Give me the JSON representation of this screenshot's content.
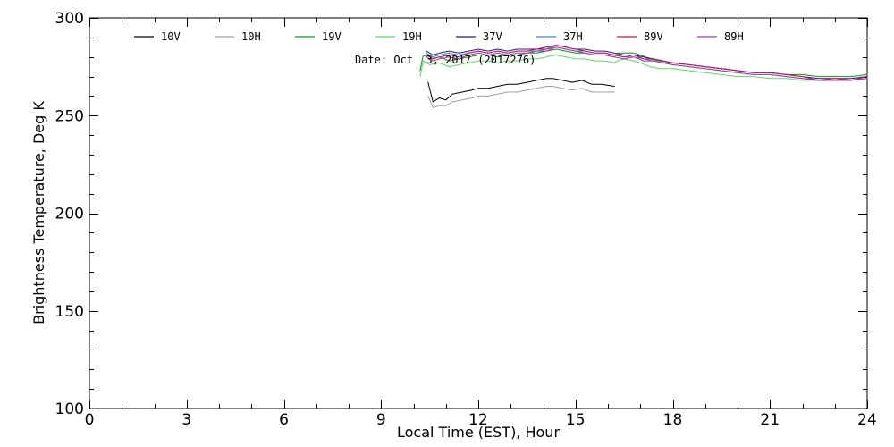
{
  "chart_data": {
    "type": "line",
    "xlabel": "Local Time (EST), Hour",
    "ylabel": "Brightness Temperature, Deg K",
    "xlim": [
      0,
      24
    ],
    "ylim": [
      100,
      300
    ],
    "x_major_ticks": [
      0,
      3,
      6,
      9,
      12,
      15,
      18,
      21,
      24
    ],
    "x_minor_step": 1,
    "y_major_ticks": [
      100,
      150,
      200,
      250,
      300
    ],
    "y_minor_step": 10,
    "grid": false,
    "legend_position": "top-left",
    "annotation": "Date: Oct  3, 2017 (2017276)",
    "series": [
      {
        "name": "10V",
        "color": "#000000",
        "x": [
          10.45,
          10.6,
          10.8,
          11.0,
          11.2,
          11.5,
          11.8,
          12.0,
          12.3,
          12.6,
          12.9,
          13.2,
          13.5,
          13.8,
          14.1,
          14.3,
          14.6,
          14.9,
          15.2,
          15.5,
          15.8,
          16.2
        ],
        "y": [
          267,
          257,
          259,
          258,
          261,
          262,
          263,
          264,
          264,
          265,
          266,
          266,
          267,
          268,
          269,
          269,
          268,
          267,
          268,
          266,
          266,
          265
        ]
      },
      {
        "name": "10H",
        "color": "#a0a0a0",
        "x": [
          10.45,
          10.6,
          10.8,
          11.0,
          11.2,
          11.5,
          11.8,
          12.0,
          12.3,
          12.6,
          12.9,
          13.2,
          13.5,
          13.8,
          14.1,
          14.3,
          14.6,
          14.9,
          15.2,
          15.5,
          15.8,
          16.2
        ],
        "y": [
          260,
          254,
          255,
          255,
          257,
          258,
          259,
          260,
          260,
          261,
          262,
          262,
          263,
          264,
          265,
          265,
          264,
          263,
          264,
          262,
          262,
          262
        ]
      },
      {
        "name": "19V",
        "color": "#00a000",
        "x": [
          10.2,
          10.3,
          10.5,
          10.8,
          11.1,
          11.4,
          11.7,
          12.0,
          12.3,
          12.6,
          12.9,
          13.2,
          13.5,
          13.8,
          14.1,
          14.4,
          14.7,
          15.0,
          15.3,
          15.6,
          15.9,
          16.2,
          16.3,
          16.5,
          16.8,
          17.0,
          17.3,
          17.6,
          18.0,
          18.5,
          19.0,
          19.5,
          20.0,
          20.5,
          21.0,
          21.5,
          22.0,
          22.5,
          23.0,
          23.5,
          24.0
        ],
        "y": [
          273,
          281,
          279,
          280,
          278,
          279,
          280,
          281,
          281,
          280,
          281,
          281,
          282,
          282,
          283,
          284,
          283,
          282,
          282,
          281,
          281,
          280,
          282,
          282,
          282,
          281,
          279,
          278,
          277,
          276,
          275,
          274,
          273,
          272,
          272,
          271,
          271,
          270,
          270,
          270,
          271
        ]
      },
      {
        "name": "19H",
        "color": "#55e055",
        "x": [
          10.2,
          10.3,
          10.5,
          10.8,
          11.1,
          11.4,
          11.7,
          12.0,
          12.3,
          12.6,
          12.9,
          13.2,
          13.5,
          13.8,
          14.1,
          14.4,
          14.7,
          15.0,
          15.3,
          15.6,
          15.9,
          16.2,
          16.3,
          16.5,
          16.8,
          17.0,
          17.3,
          17.6,
          18.0,
          18.5,
          19.0,
          19.5,
          20.0,
          20.5,
          21.0,
          21.5,
          22.0,
          22.5,
          23.0,
          23.5,
          24.0
        ],
        "y": [
          270,
          278,
          276,
          277,
          275,
          276,
          277,
          278,
          278,
          277,
          278,
          278,
          279,
          279,
          280,
          281,
          280,
          279,
          279,
          278,
          278,
          277,
          278,
          279,
          278,
          277,
          275,
          274,
          274,
          273,
          272,
          271,
          270,
          270,
          269,
          269,
          268,
          268,
          268,
          269,
          270
        ]
      },
      {
        "name": "37V",
        "color": "#2a1a8a",
        "x": [
          10.4,
          10.6,
          10.8,
          11.1,
          11.4,
          11.7,
          12.0,
          12.3,
          12.6,
          12.9,
          13.2,
          13.5,
          13.8,
          14.1,
          14.4,
          14.7,
          15.0,
          15.3,
          15.6,
          15.9,
          16.2,
          16.5,
          16.8,
          17.1,
          17.4,
          17.7,
          18.0,
          18.5,
          19.0,
          19.5,
          20.0,
          20.5,
          21.0,
          21.5,
          22.0,
          22.5,
          23.0,
          23.5,
          24.0
        ],
        "y": [
          283,
          281,
          282,
          283,
          282,
          283,
          284,
          283,
          284,
          283,
          284,
          284,
          284,
          285,
          286,
          285,
          284,
          284,
          283,
          283,
          282,
          281,
          281,
          280,
          279,
          278,
          277,
          276,
          275,
          274,
          273,
          272,
          272,
          271,
          270,
          269,
          269,
          269,
          270
        ]
      },
      {
        "name": "37H",
        "color": "#2a8fd0",
        "x": [
          10.4,
          10.6,
          10.8,
          11.1,
          11.4,
          11.7,
          12.0,
          12.3,
          12.6,
          12.9,
          13.2,
          13.5,
          13.8,
          14.1,
          14.4,
          14.7,
          15.0,
          15.3,
          15.6,
          15.9,
          16.2,
          16.5,
          16.8,
          17.1,
          17.4,
          17.7,
          18.0,
          18.5,
          19.0,
          19.5,
          20.0,
          20.5,
          21.0,
          21.5,
          22.0,
          22.5,
          23.0,
          23.5,
          24.0
        ],
        "y": [
          282,
          280,
          281,
          282,
          281,
          282,
          283,
          282,
          283,
          282,
          283,
          283,
          283,
          284,
          285,
          284,
          283,
          283,
          282,
          282,
          281,
          280,
          280,
          279,
          278,
          277,
          276,
          275,
          274,
          273,
          272,
          271,
          271,
          270,
          269,
          268,
          268,
          268,
          269
        ]
      },
      {
        "name": "89V",
        "color": "#d0104a",
        "x": [
          10.4,
          10.6,
          10.8,
          11.1,
          11.4,
          11.7,
          12.0,
          12.3,
          12.6,
          12.9,
          13.2,
          13.5,
          13.8,
          14.1,
          14.4,
          14.7,
          15.0,
          15.3,
          15.6,
          15.9,
          16.2,
          16.5,
          16.8,
          17.1,
          17.4,
          17.7,
          18.0,
          18.5,
          19.0,
          19.5,
          20.0,
          20.5,
          21.0,
          21.5,
          22.0,
          22.5,
          23.0,
          23.5,
          24.0
        ],
        "y": [
          281,
          279,
          280,
          281,
          280,
          282,
          283,
          282,
          283,
          282,
          283,
          283,
          284,
          284,
          286,
          285,
          284,
          283,
          282,
          282,
          281,
          280,
          281,
          279,
          279,
          278,
          277,
          276,
          275,
          274,
          273,
          272,
          272,
          271,
          270,
          268,
          269,
          268,
          270
        ]
      },
      {
        "name": "89H",
        "color": "#b030c0",
        "x": [
          10.4,
          10.6,
          10.8,
          11.1,
          11.4,
          11.7,
          12.0,
          12.3,
          12.6,
          12.9,
          13.2,
          13.5,
          13.8,
          14.1,
          14.4,
          14.7,
          15.0,
          15.3,
          15.6,
          15.9,
          16.2,
          16.5,
          16.8,
          17.1,
          17.4,
          17.7,
          18.0,
          18.5,
          19.0,
          19.5,
          20.0,
          20.5,
          21.0,
          21.5,
          22.0,
          22.5,
          23.0,
          23.5,
          24.0
        ],
        "y": [
          280,
          278,
          279,
          280,
          279,
          281,
          282,
          281,
          282,
          281,
          282,
          282,
          283,
          283,
          285,
          284,
          283,
          282,
          281,
          281,
          280,
          279,
          280,
          278,
          278,
          277,
          276,
          275,
          274,
          273,
          272,
          271,
          271,
          270,
          269,
          268,
          268,
          268,
          269
        ]
      }
    ]
  }
}
